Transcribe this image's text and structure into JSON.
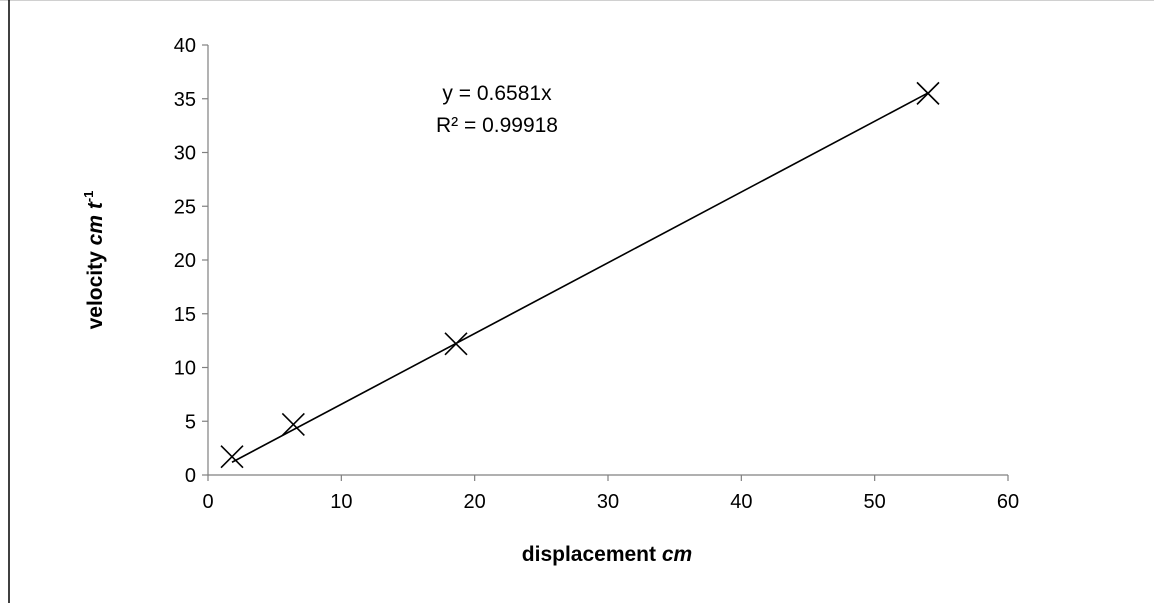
{
  "chart_data": {
    "type": "scatter",
    "title": "",
    "xlabel_parts": {
      "text": "displacement ",
      "italic": "cm"
    },
    "ylabel_parts": {
      "text": "velocity  ",
      "italic": "cm  t",
      "sup": "-1"
    },
    "xlim": [
      0,
      60
    ],
    "ylim": [
      0,
      40
    ],
    "x_ticks": [
      0,
      10,
      20,
      30,
      40,
      50,
      60
    ],
    "y_ticks": [
      0,
      5,
      10,
      15,
      20,
      25,
      30,
      35,
      40
    ],
    "grid": false,
    "legend": "none",
    "marker": "x",
    "series": [
      {
        "x": [
          1.8,
          6.4,
          18.6,
          54.0
        ],
        "y": [
          1.7,
          4.7,
          12.2,
          35.5
        ]
      }
    ],
    "trendline": {
      "type": "linear",
      "slope": 0.6581,
      "intercept": 0,
      "equation": "y = 0.6581x",
      "r_squared": "R² = 0.99918"
    },
    "colors": {
      "axis": "#808080",
      "marks": "#000000",
      "frame": "#d0d0d0"
    }
  }
}
